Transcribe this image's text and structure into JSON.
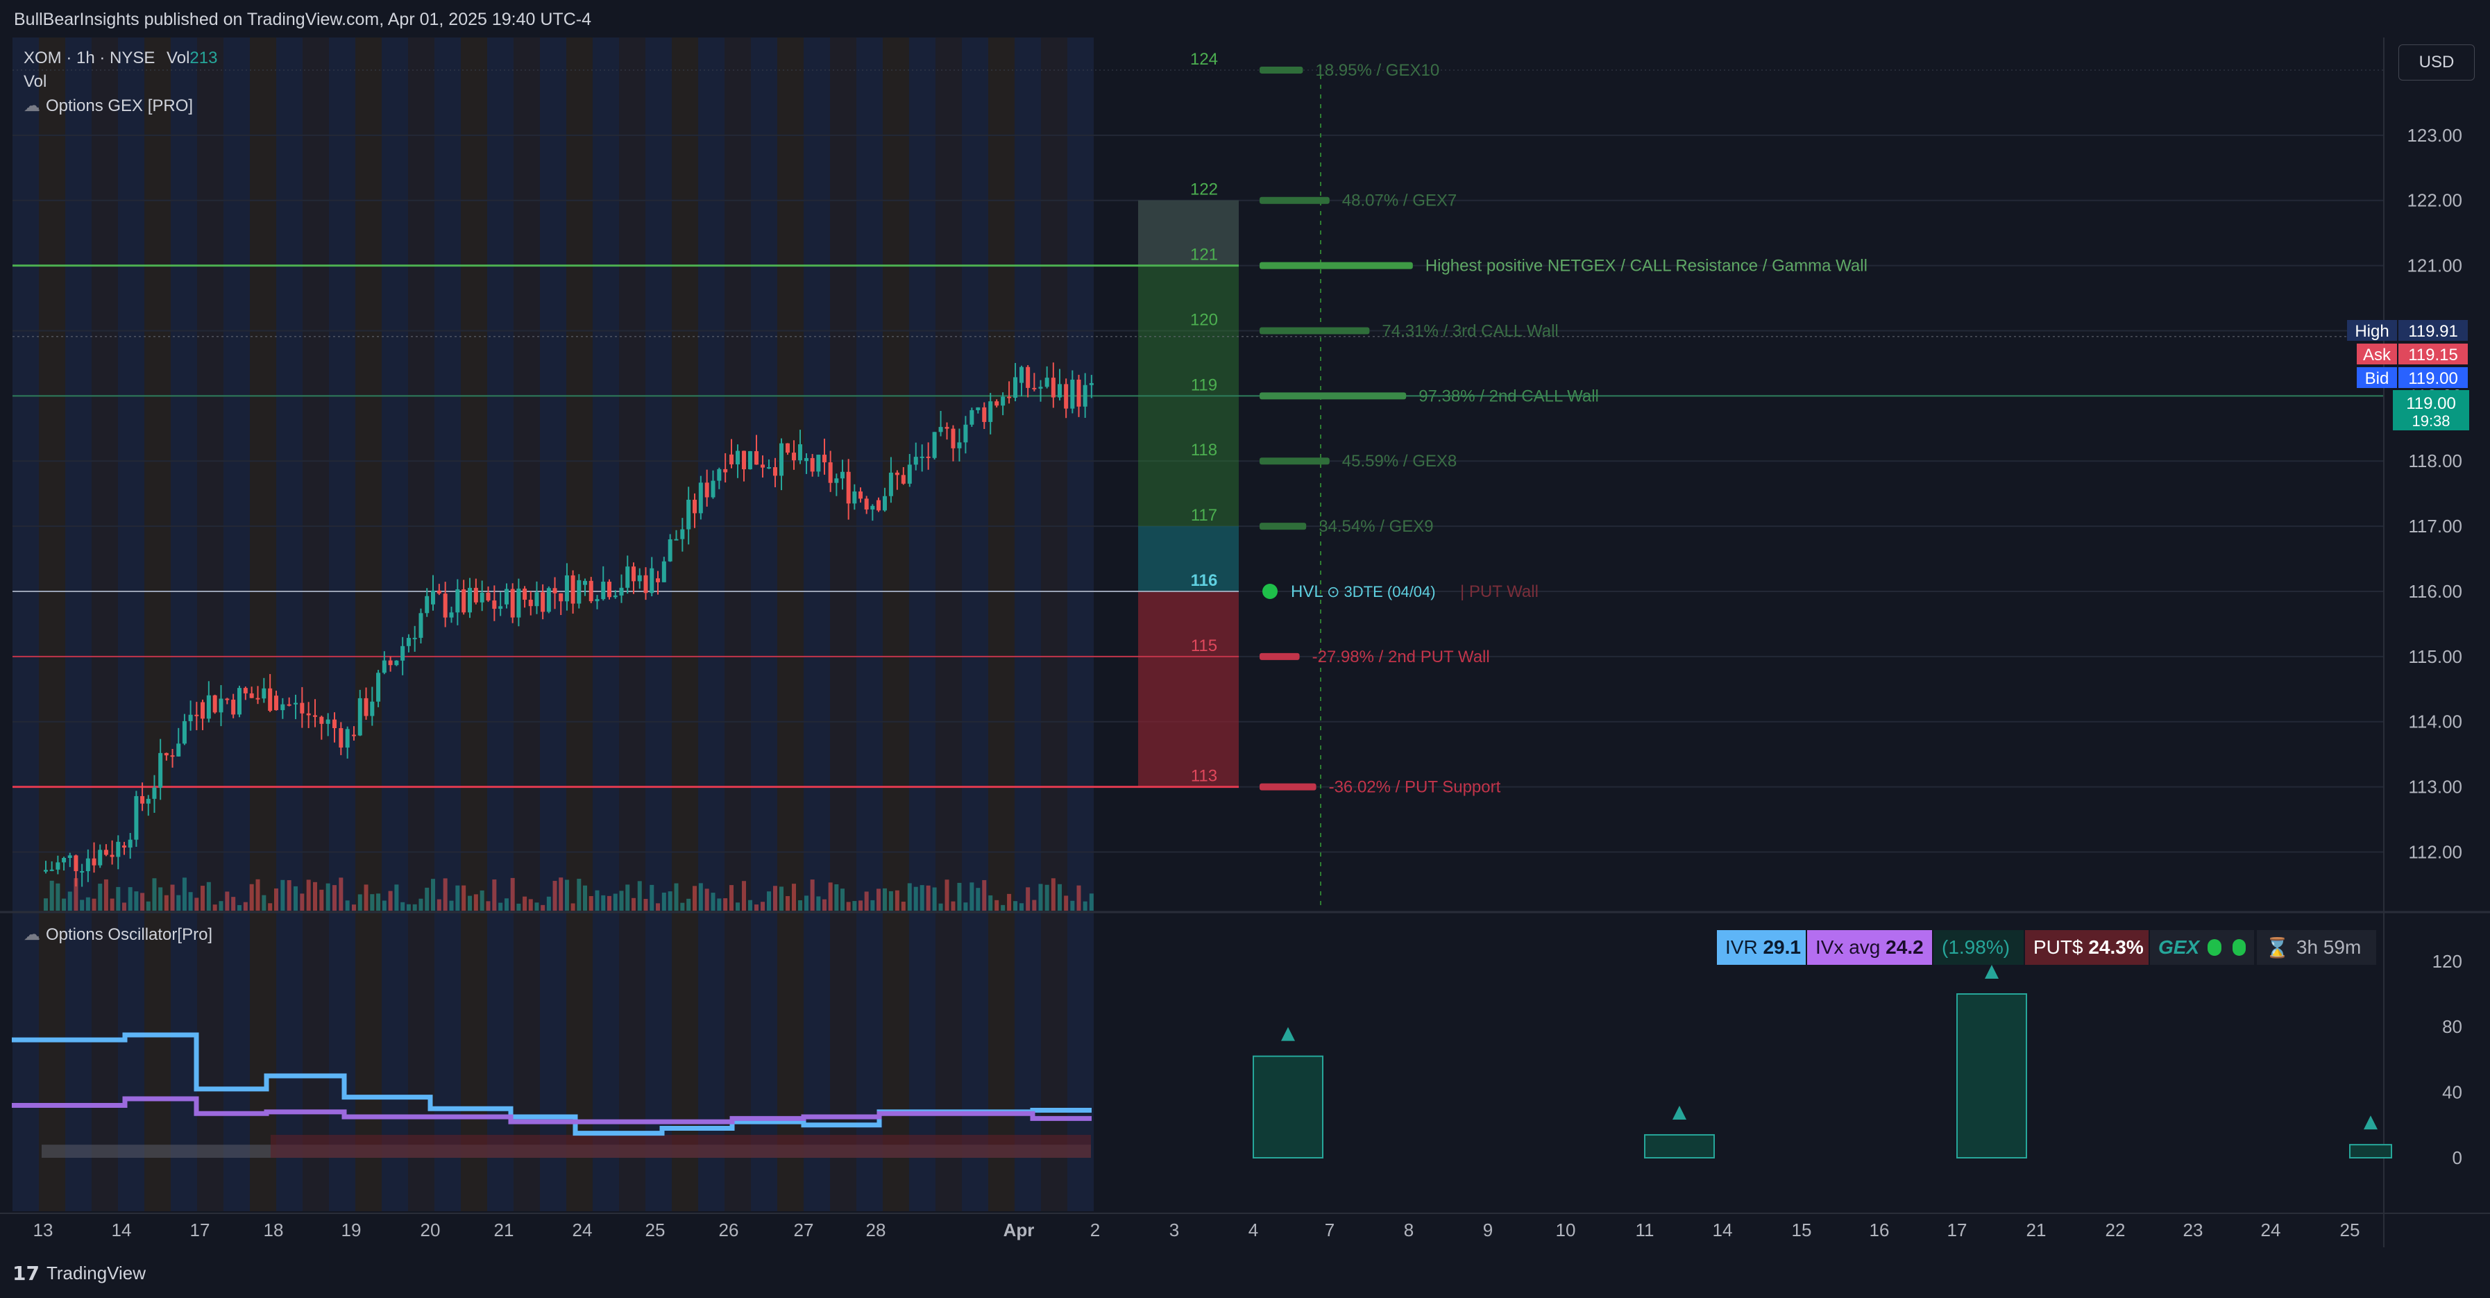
{
  "header": {
    "publisher": "BullBearInsights published on TradingView.com, Apr 01, 2025 19:40 UTC-4"
  },
  "legend": {
    "symbol": "XOM · 1h · NYSE",
    "vol_label": "Vol",
    "vol_value": "213",
    "vol_line": "Vol",
    "indicator": "Options GEX [PRO]",
    "oscillator": "Options Oscillator[Pro]"
  },
  "currency": "USD",
  "colors": {
    "bg": "#131722",
    "up": "#26a69a",
    "down": "#ef5350",
    "call": "#4caf50",
    "put": "#f23645",
    "ivr": "#5eb5f7",
    "ivx": "#9c6ade"
  },
  "price_axis": {
    "ticks": [
      "123.00",
      "122.00",
      "121.00",
      "120.00",
      "119.00",
      "118.00",
      "117.00",
      "116.00",
      "115.00",
      "114.00",
      "113.00",
      "112.00"
    ]
  },
  "price_labels": {
    "high": {
      "label": "High",
      "value": "119.91"
    },
    "ask": {
      "label": "Ask",
      "value": "119.15"
    },
    "bid": {
      "label": "Bid",
      "value": "119.00"
    },
    "last": {
      "value": "119.00",
      "countdown": "19:38"
    }
  },
  "strike_labels": [
    "124",
    "122",
    "121",
    "120",
    "119",
    "118",
    "117",
    "116",
    "115",
    "113"
  ],
  "gex_levels": [
    {
      "price": 124,
      "text": "18.95% / GEX10",
      "type": "call_weak",
      "len": 0.13
    },
    {
      "price": 122,
      "text": "48.07% / GEX7",
      "type": "call_weak",
      "len": 0.21
    },
    {
      "price": 121,
      "text": "Highest positive NETGEX / CALL Resistance / Gamma Wall",
      "type": "call_strong",
      "len": 0.46
    },
    {
      "price": 120,
      "text": "74.31% / 3rd CALL Wall",
      "type": "call_weak",
      "len": 0.33
    },
    {
      "price": 119,
      "text": "97.38% / 2nd CALL Wall",
      "type": "call_mid",
      "len": 0.44
    },
    {
      "price": 118,
      "text": "45.59% / GEX8",
      "type": "call_weak",
      "len": 0.21
    },
    {
      "price": 117,
      "text": "34.54% / GEX9",
      "type": "call_weak",
      "len": 0.14
    },
    {
      "price": 115,
      "text": "-27.98% / 2nd PUT Wall",
      "type": "put",
      "len": 0.12
    },
    {
      "price": 113,
      "text": "-36.02% / PUT Support",
      "type": "put",
      "len": 0.17
    }
  ],
  "hvl": {
    "price": 116,
    "text": "HVL",
    "dte": "3DTE (04/04)",
    "extra": "| PUT Wall"
  },
  "time_axis": {
    "ticks": [
      "13",
      "14",
      "17",
      "18",
      "19",
      "20",
      "21",
      "24",
      "25",
      "26",
      "27",
      "28",
      "Apr",
      "2",
      "3",
      "4",
      "7",
      "8",
      "9",
      "10",
      "11",
      "14",
      "15",
      "16",
      "17",
      "21",
      "22",
      "23",
      "24",
      "25"
    ]
  },
  "oscillator_axis": {
    "ticks": [
      "120",
      "80",
      "40",
      "0"
    ]
  },
  "stats": {
    "ivr_label": "IVR",
    "ivr_value": "29.1",
    "ivx_label": "IVx avg",
    "ivx_value": "24.2",
    "change": "(1.98%)",
    "put_label": "PUT$",
    "put_value": "24.3%",
    "gex_label": "GEX",
    "timer": "3h 59m"
  },
  "footer": {
    "brand": "TradingView"
  },
  "chart_data": {
    "type": "line",
    "title": "XOM · 1h · NYSE",
    "x_label": "",
    "y_label": "",
    "ylim": [
      111.1,
      124.5
    ],
    "candle_segments": [
      {
        "from": "13",
        "to": "14",
        "start": 111.7,
        "end": 112.1
      },
      {
        "from": "14",
        "to": "17",
        "start": 112.1,
        "end": 114.3
      },
      {
        "from": "17",
        "to": "18",
        "start": 114.3,
        "end": 114.4
      },
      {
        "from": "18",
        "to": "19",
        "start": 114.4,
        "end": 113.8
      },
      {
        "from": "19",
        "to": "20",
        "start": 113.8,
        "end": 115.8
      },
      {
        "from": "20",
        "to": "21",
        "start": 115.8,
        "end": 115.8
      },
      {
        "from": "21",
        "to": "24",
        "start": 115.8,
        "end": 116.1
      },
      {
        "from": "24",
        "to": "25",
        "start": 116.1,
        "end": 116.2
      },
      {
        "from": "25",
        "to": "26",
        "start": 116.2,
        "end": 118.1
      },
      {
        "from": "26",
        "to": "27",
        "start": 118.1,
        "end": 118.0
      },
      {
        "from": "27",
        "to": "28",
        "start": 118.0,
        "end": 117.4
      },
      {
        "from": "28",
        "to": "Apr",
        "start": 117.4,
        "end": 119.2
      },
      {
        "from": "Apr",
        "to": "2",
        "start": 119.2,
        "end": 119.0
      }
    ],
    "series": [
      {
        "name": "IVR",
        "color": "#5eb5f7",
        "values": [
          72,
          75,
          42,
          50,
          37,
          30,
          25,
          15,
          18,
          22,
          20,
          28,
          29
        ]
      },
      {
        "name": "IVx avg",
        "color": "#9c6ade",
        "values": [
          32,
          36,
          27,
          28,
          25,
          25,
          22,
          22,
          22,
          24,
          25,
          27,
          24
        ]
      }
    ],
    "oscillator_bars": [
      {
        "x": "4",
        "value": 62
      },
      {
        "x": "11",
        "value": 14
      },
      {
        "x": "17",
        "value": 100
      },
      {
        "x": "25",
        "value": 8
      }
    ],
    "oscillator_ylim": [
      0,
      125
    ],
    "legend": "none",
    "grid": true
  }
}
